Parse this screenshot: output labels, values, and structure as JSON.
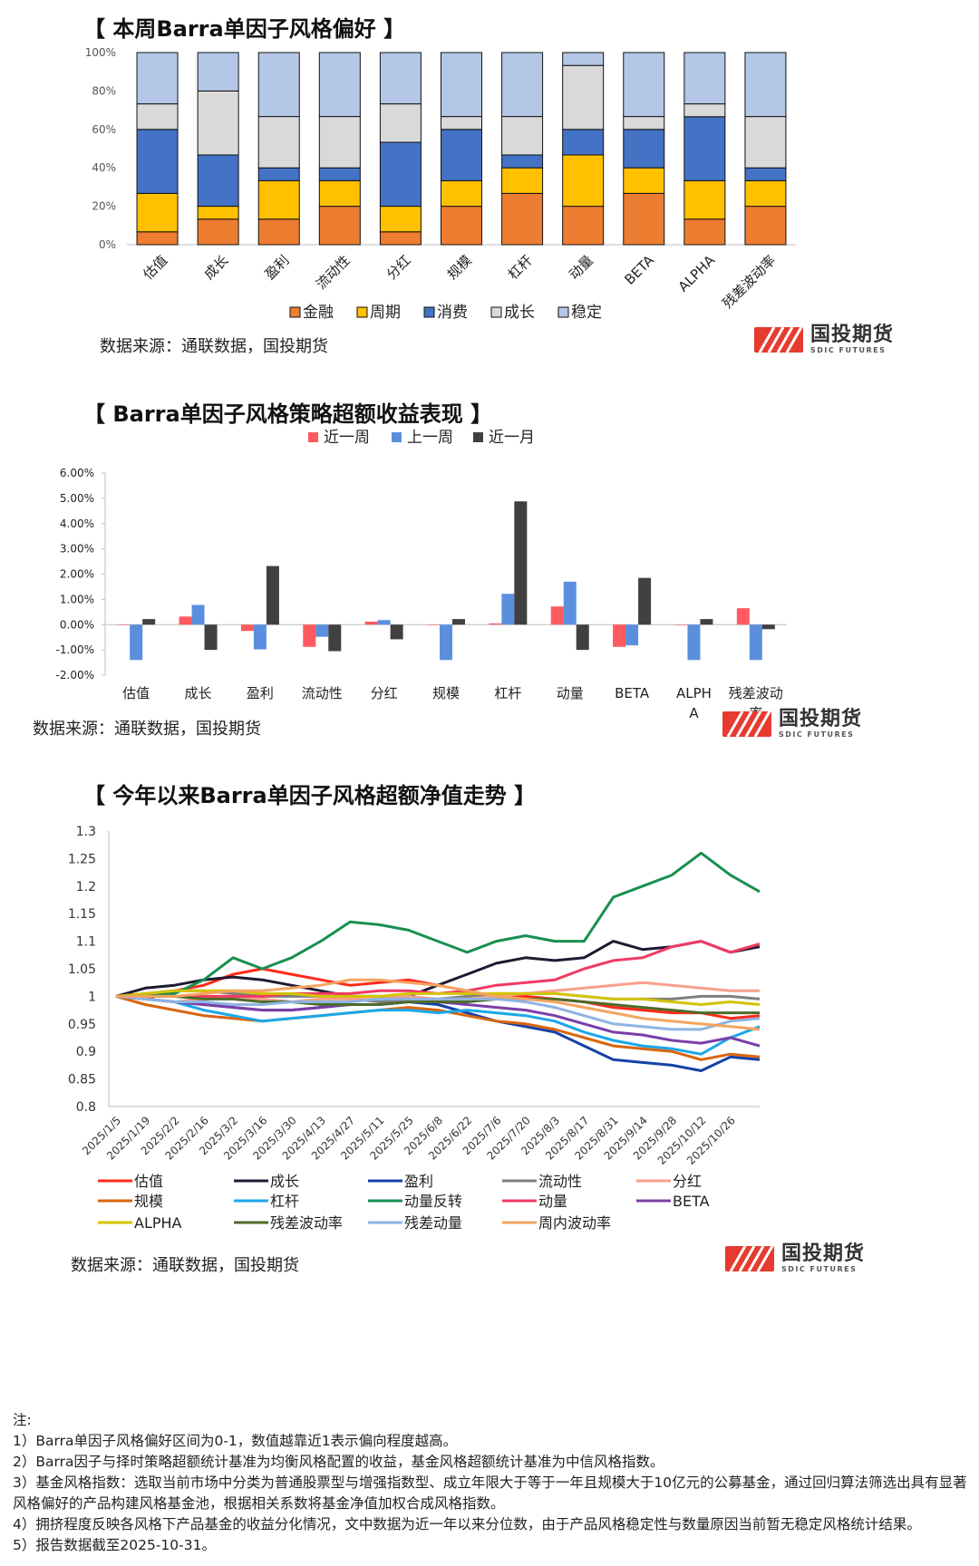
{
  "colors": {
    "finance": "#ED7D31",
    "cycle": "#FFC000",
    "consumer": "#4472C4",
    "growth": "#D9D9D9",
    "stable": "#B4C7E7",
    "week": "#FF5A5F",
    "lastweek": "#5B8FDE",
    "month": "#404040"
  },
  "logo": {
    "cn": "国投期货",
    "en": "SDIC FUTURES"
  },
  "section1": {
    "title": "【 本周Barra单因子风格偏好 】",
    "source": "数据来源：通联数据，国投期货"
  },
  "section2": {
    "title": "【 Barra单因子风格策略超额收益表现 】",
    "source": "数据来源：通联数据，国投期货"
  },
  "section3": {
    "title": "【 今年以来Barra单因子风格超额净值走势 】",
    "source": "数据来源：通联数据，国投期货"
  },
  "notes": [
    "注:",
    "1）Barra单因子风格偏好区间为0-1，数值越靠近1表示偏向程度越高。",
    "2）Barra因子与择时策略超额统计基准为均衡风格配置的收益，基金风格超额统计基准为中信风格指数。",
    "3）基金风格指数：选取当前市场中分类为普通股票型与增强指数型、成立年限大于等于一年且规模大于10亿元的公募基金，通过回归算法筛选出具有显著风格偏好的产品构建风格基金池，根据相关系数将基金净值加权合成风格指数。",
    "4）拥挤程度反映各风格下产品基金的收益分化情况，文中数据为近一年以来分位数，由于产品风格稳定性与数量原因当前暂无稳定风格统计结果。",
    "5）报告数据截至2025-10-31。"
  ],
  "chart_data": [
    {
      "type": "bar",
      "stacked": true,
      "title": "本周Barra单因子风格偏好",
      "categories": [
        "估值",
        "成长",
        "盈利",
        "流动性",
        "分红",
        "规模",
        "杠杆",
        "动量",
        "BETA",
        "ALPHA",
        "残差波动率"
      ],
      "ylim": [
        0,
        1
      ],
      "yticks": [
        "0%",
        "20%",
        "40%",
        "60%",
        "80%",
        "100%"
      ],
      "series": [
        {
          "name": "金融",
          "values": [
            0.067,
            0.133,
            0.133,
            0.2,
            0.067,
            0.2,
            0.267,
            0.2,
            0.267,
            0.133,
            0.2
          ]
        },
        {
          "name": "周期",
          "values": [
            0.2,
            0.067,
            0.2,
            0.133,
            0.133,
            0.133,
            0.133,
            0.267,
            0.133,
            0.2,
            0.133
          ]
        },
        {
          "name": "消费",
          "values": [
            0.333,
            0.267,
            0.067,
            0.067,
            0.333,
            0.267,
            0.067,
            0.133,
            0.2,
            0.333,
            0.067
          ]
        },
        {
          "name": "成长",
          "values": [
            0.133,
            0.333,
            0.267,
            0.267,
            0.2,
            0.067,
            0.2,
            0.333,
            0.067,
            0.067,
            0.267
          ]
        },
        {
          "name": "稳定",
          "values": [
            0.267,
            0.2,
            0.333,
            0.333,
            0.267,
            0.333,
            0.333,
            0.067,
            0.333,
            0.267,
            0.333
          ]
        }
      ]
    },
    {
      "type": "bar",
      "title": "Barra单因子风格策略超额收益表现",
      "categories": [
        "估值",
        "成长",
        "盈利",
        "流动性",
        "分红",
        "规模",
        "杠杆",
        "动量",
        "BETA",
        "ALPHA",
        "残差波动率"
      ],
      "ylim": [
        -0.02,
        0.06
      ],
      "yticks": [
        "-2.00%",
        "-1.00%",
        "0.00%",
        "1.00%",
        "2.00%",
        "3.00%",
        "4.00%",
        "5.00%",
        "6.00%"
      ],
      "series": [
        {
          "name": "近一周",
          "values": [
            0.0,
            0.0032,
            -0.0025,
            -0.0088,
            0.0012,
            0.0,
            0.0005,
            0.0072,
            -0.0088,
            0.0,
            0.0065
          ]
        },
        {
          "name": "上一周",
          "values": [
            -0.014,
            0.0078,
            -0.0098,
            -0.0048,
            0.0018,
            -0.014,
            0.0122,
            0.017,
            -0.0082,
            -0.014,
            -0.014
          ]
        },
        {
          "name": "近一月",
          "values": [
            0.0022,
            -0.01,
            0.0232,
            -0.0105,
            -0.0058,
            0.0022,
            0.0488,
            -0.01,
            0.0185,
            0.0022,
            -0.0018
          ]
        }
      ]
    },
    {
      "type": "line",
      "title": "今年以来Barra单因子风格超额净值走势",
      "x": [
        "2025/1/5",
        "2025/1/19",
        "2025/2/2",
        "2025/2/16",
        "2025/3/2",
        "2025/3/16",
        "2025/3/30",
        "2025/4/13",
        "2025/4/27",
        "2025/5/11",
        "2025/5/25",
        "2025/6/8",
        "2025/6/22",
        "2025/7/6",
        "2025/7/20",
        "2025/8/3",
        "2025/8/17",
        "2025/8/31",
        "2025/9/14",
        "2025/9/28",
        "2025/10/12",
        "2025/10/26",
        "2025/10/31"
      ],
      "ylim": [
        0.8,
        1.3
      ],
      "yticks": [
        "0.8",
        "0.85",
        "0.9",
        "0.95",
        "1",
        "1.05",
        "1.1",
        "1.15",
        "1.2",
        "1.25",
        "1.3"
      ],
      "series": [
        {
          "name": "估值",
          "color": "#FF2A1A",
          "values": [
            1.0,
            0.995,
            1.01,
            1.02,
            1.04,
            1.05,
            1.04,
            1.03,
            1.02,
            1.025,
            1.03,
            1.02,
            1.01,
            1.0,
            1.0,
            0.995,
            0.99,
            0.98,
            0.975,
            0.97,
            0.97,
            0.96,
            0.965
          ]
        },
        {
          "name": "成长",
          "color": "#1F1A33",
          "values": [
            1.0,
            1.015,
            1.02,
            1.03,
            1.035,
            1.03,
            1.02,
            1.01,
            1.0,
            1.0,
            1.0,
            1.02,
            1.04,
            1.06,
            1.07,
            1.065,
            1.07,
            1.1,
            1.085,
            1.09,
            1.1,
            1.08,
            1.09
          ]
        },
        {
          "name": "盈利",
          "color": "#1542A8",
          "values": [
            1.0,
            0.995,
            0.99,
            0.985,
            0.98,
            0.975,
            0.975,
            0.98,
            0.985,
            0.985,
            0.99,
            0.985,
            0.97,
            0.955,
            0.945,
            0.935,
            0.91,
            0.885,
            0.88,
            0.875,
            0.865,
            0.89,
            0.885
          ]
        },
        {
          "name": "流动性",
          "color": "#7F7F7F",
          "values": [
            1.0,
            1.005,
            1.01,
            1.01,
            1.005,
            1.0,
            1.0,
            1.0,
            0.995,
            0.99,
            0.995,
            0.995,
            1.0,
            1.005,
            1.005,
            1.005,
            1.0,
            0.995,
            0.995,
            0.995,
            1.0,
            1.0,
            0.995
          ]
        },
        {
          "name": "分红",
          "color": "#F7A08A",
          "values": [
            1.0,
            0.995,
            0.99,
            0.995,
            1.0,
            0.995,
            0.99,
            0.995,
            0.995,
            1.0,
            1.0,
            0.995,
            0.995,
            1.0,
            1.005,
            1.01,
            1.015,
            1.02,
            1.025,
            1.02,
            1.015,
            1.01,
            1.01
          ]
        },
        {
          "name": "规模",
          "color": "#D9650F",
          "values": [
            1.0,
            0.985,
            0.975,
            0.965,
            0.96,
            0.955,
            0.96,
            0.965,
            0.97,
            0.975,
            0.98,
            0.975,
            0.965,
            0.955,
            0.95,
            0.94,
            0.925,
            0.91,
            0.905,
            0.9,
            0.885,
            0.895,
            0.89
          ]
        },
        {
          "name": "杠杆",
          "color": "#1AA8E8",
          "values": [
            1.0,
            0.995,
            0.99,
            0.975,
            0.965,
            0.955,
            0.96,
            0.965,
            0.97,
            0.975,
            0.975,
            0.97,
            0.975,
            0.97,
            0.965,
            0.955,
            0.935,
            0.92,
            0.91,
            0.905,
            0.895,
            0.925,
            0.945
          ]
        },
        {
          "name": "动量反转",
          "color": "#17904F",
          "values": [
            1.0,
            1.0,
            1.005,
            1.03,
            1.07,
            1.05,
            1.07,
            1.1,
            1.135,
            1.13,
            1.12,
            1.1,
            1.08,
            1.1,
            1.11,
            1.1,
            1.1,
            1.18,
            1.2,
            1.22,
            1.26,
            1.22,
            1.19
          ]
        },
        {
          "name": "动量",
          "color": "#F23A63",
          "values": [
            1.0,
            1.0,
            1.0,
            1.0,
            1.0,
            1.0,
            1.005,
            1.005,
            1.005,
            1.01,
            1.01,
            1.005,
            1.01,
            1.02,
            1.025,
            1.03,
            1.05,
            1.065,
            1.07,
            1.09,
            1.1,
            1.08,
            1.095
          ]
        },
        {
          "name": "BETA",
          "color": "#7B3FA8",
          "values": [
            1.0,
            0.995,
            0.99,
            0.985,
            0.98,
            0.975,
            0.975,
            0.98,
            0.985,
            0.985,
            0.99,
            0.99,
            0.985,
            0.98,
            0.975,
            0.965,
            0.95,
            0.935,
            0.93,
            0.92,
            0.915,
            0.925,
            0.91
          ]
        },
        {
          "name": "ALPHA",
          "color": "#D4C400",
          "values": [
            1.0,
            1.005,
            1.01,
            1.01,
            1.01,
            1.005,
            1.005,
            1.0,
            1.0,
            1.0,
            1.005,
            1.005,
            1.005,
            1.005,
            1.005,
            1.005,
            1.0,
            0.995,
            0.995,
            0.99,
            0.985,
            0.99,
            0.985
          ]
        },
        {
          "name": "残差波动率",
          "color": "#4E6B2A",
          "values": [
            1.0,
            1.0,
            1.0,
            0.995,
            0.995,
            0.99,
            0.99,
            0.985,
            0.985,
            0.985,
            0.99,
            0.99,
            0.99,
            0.995,
            0.995,
            0.995,
            0.99,
            0.985,
            0.98,
            0.975,
            0.97,
            0.97,
            0.97
          ]
        },
        {
          "name": "残差动量",
          "color": "#8EB4E3",
          "values": [
            1.0,
            0.995,
            0.99,
            0.99,
            0.985,
            0.985,
            0.99,
            0.99,
            0.99,
            0.995,
            0.995,
            0.995,
            0.995,
            0.995,
            0.99,
            0.98,
            0.965,
            0.95,
            0.945,
            0.94,
            0.94,
            0.955,
            0.96
          ]
        },
        {
          "name": "周内波动率",
          "color": "#F4A460",
          "values": [
            1.0,
            1.0,
            1.0,
            1.005,
            1.01,
            1.01,
            1.015,
            1.02,
            1.03,
            1.03,
            1.025,
            1.02,
            1.01,
            1.0,
            0.995,
            0.99,
            0.98,
            0.97,
            0.96,
            0.955,
            0.95,
            0.945,
            0.94
          ]
        }
      ]
    }
  ]
}
